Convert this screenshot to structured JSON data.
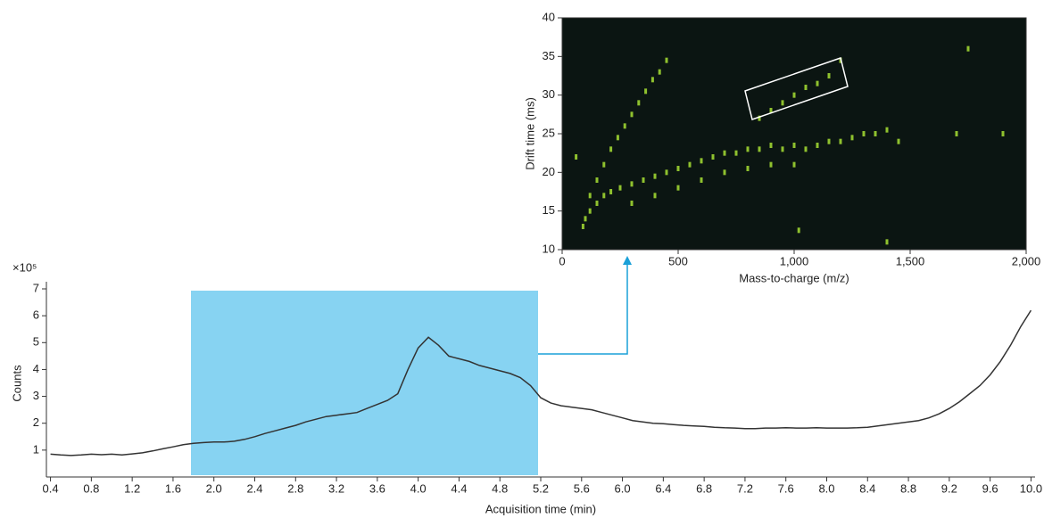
{
  "chart_data": [
    {
      "type": "line",
      "y_label": "Counts",
      "y_multiplier": "×10⁵",
      "x_label": "Acquisition time (min)",
      "color": "#333333",
      "x": [
        0.4,
        0.5,
        0.6,
        0.7,
        0.8,
        0.9,
        1.0,
        1.1,
        1.2,
        1.3,
        1.4,
        1.5,
        1.6,
        1.7,
        1.8,
        1.9,
        2.0,
        2.1,
        2.2,
        2.3,
        2.4,
        2.5,
        2.6,
        2.7,
        2.8,
        2.9,
        3.0,
        3.1,
        3.2,
        3.3,
        3.4,
        3.5,
        3.6,
        3.7,
        3.8,
        3.9,
        4.0,
        4.1,
        4.2,
        4.3,
        4.4,
        4.5,
        4.6,
        4.7,
        4.8,
        4.9,
        5.0,
        5.1,
        5.2,
        5.3,
        5.4,
        5.5,
        5.6,
        5.7,
        5.8,
        5.9,
        6.0,
        6.1,
        6.2,
        6.3,
        6.4,
        6.5,
        6.6,
        6.7,
        6.8,
        6.9,
        7.0,
        7.1,
        7.2,
        7.3,
        7.4,
        7.5,
        7.6,
        7.7,
        7.8,
        7.9,
        8.0,
        8.1,
        8.2,
        8.3,
        8.4,
        8.5,
        8.6,
        8.7,
        8.8,
        8.9,
        9.0,
        9.1,
        9.2,
        9.3,
        9.4,
        9.5,
        9.6,
        9.7,
        9.8,
        9.9,
        10.0
      ],
      "values": [
        0.85,
        0.82,
        0.8,
        0.82,
        0.85,
        0.83,
        0.85,
        0.82,
        0.86,
        0.9,
        0.97,
        1.05,
        1.12,
        1.2,
        1.25,
        1.28,
        1.3,
        1.3,
        1.33,
        1.4,
        1.5,
        1.62,
        1.72,
        1.82,
        1.92,
        2.05,
        2.15,
        2.25,
        2.3,
        2.35,
        2.4,
        2.55,
        2.7,
        2.85,
        3.1,
        4.0,
        4.8,
        5.2,
        4.9,
        4.5,
        4.4,
        4.3,
        4.15,
        4.05,
        3.95,
        3.85,
        3.7,
        3.4,
        2.95,
        2.75,
        2.65,
        2.6,
        2.55,
        2.5,
        2.4,
        2.3,
        2.2,
        2.1,
        2.05,
        2.0,
        1.98,
        1.95,
        1.92,
        1.9,
        1.88,
        1.85,
        1.83,
        1.82,
        1.8,
        1.8,
        1.82,
        1.82,
        1.83,
        1.82,
        1.82,
        1.83,
        1.82,
        1.82,
        1.82,
        1.83,
        1.85,
        1.9,
        1.95,
        2.0,
        2.05,
        2.1,
        2.2,
        2.35,
        2.55,
        2.8,
        3.1,
        3.4,
        3.8,
        4.3,
        4.9,
        5.6,
        6.2
      ],
      "xlim": [
        0.36,
        10.04
      ],
      "ylim": [
        0,
        7
      ],
      "xticks": [
        0.4,
        0.8,
        1.2,
        1.6,
        {
          "value": 2,
          "label": "2.0"
        },
        2.4,
        2.8,
        3.2,
        3.6,
        {
          "value": 4,
          "label": "4.0"
        },
        4.4,
        4.8,
        5.2,
        5.6,
        {
          "value": 6,
          "label": "6.0"
        },
        6.4,
        6.8,
        7.2,
        7.6,
        {
          "value": 8,
          "label": "8.0"
        },
        8.4,
        8.8,
        9.2,
        9.6,
        {
          "value": 10,
          "label": "10.0"
        }
      ],
      "yticks": [
        1,
        2,
        3,
        4,
        5,
        6,
        7
      ]
    },
    {
      "type": "scatter",
      "x_label": "Mass-to-charge (m/z)",
      "y_label": "Drift time (ms)",
      "color": "#8fc12e",
      "background": "#0b1512",
      "x": [
        120,
        150,
        180,
        210,
        240,
        270,
        300,
        330,
        360,
        390,
        420,
        450,
        90,
        100,
        120,
        150,
        180,
        210,
        250,
        300,
        350,
        400,
        450,
        500,
        550,
        600,
        650,
        700,
        750,
        800,
        850,
        900,
        950,
        1000,
        1050,
        1100,
        1150,
        1200,
        1250,
        1300,
        1350,
        1400,
        1450,
        300,
        400,
        500,
        600,
        700,
        800,
        900,
        1000,
        850,
        900,
        950,
        1000,
        1050,
        1100,
        1150,
        1200,
        1700,
        1400,
        1750,
        1900,
        1020,
        60
      ],
      "values": [
        17,
        19,
        21,
        23,
        24.5,
        26,
        27.5,
        29,
        30.5,
        32,
        33,
        34.5,
        13,
        14,
        15,
        16,
        17,
        17.5,
        18,
        18.5,
        19,
        19.5,
        20,
        20.5,
        21,
        21.5,
        22,
        22.5,
        22.5,
        23,
        23,
        23.5,
        23,
        23.5,
        23,
        23.5,
        24,
        24,
        24.5,
        25,
        25,
        25.5,
        24,
        16,
        17,
        18,
        19,
        20,
        20.5,
        21,
        21,
        27,
        28,
        29,
        30,
        31,
        31.5,
        32.5,
        34.5,
        25,
        11,
        36,
        25,
        12.5,
        22
      ],
      "xlim": [
        0,
        2000
      ],
      "ylim": [
        10,
        40
      ],
      "xticks": [
        0,
        500,
        {
          "value": 1000,
          "label": "1,000"
        },
        {
          "value": 1500,
          "label": "1,500"
        },
        {
          "value": 2000,
          "label": "2,000"
        }
      ],
      "yticks": [
        10,
        15,
        20,
        25,
        30,
        35,
        40
      ]
    }
  ]
}
